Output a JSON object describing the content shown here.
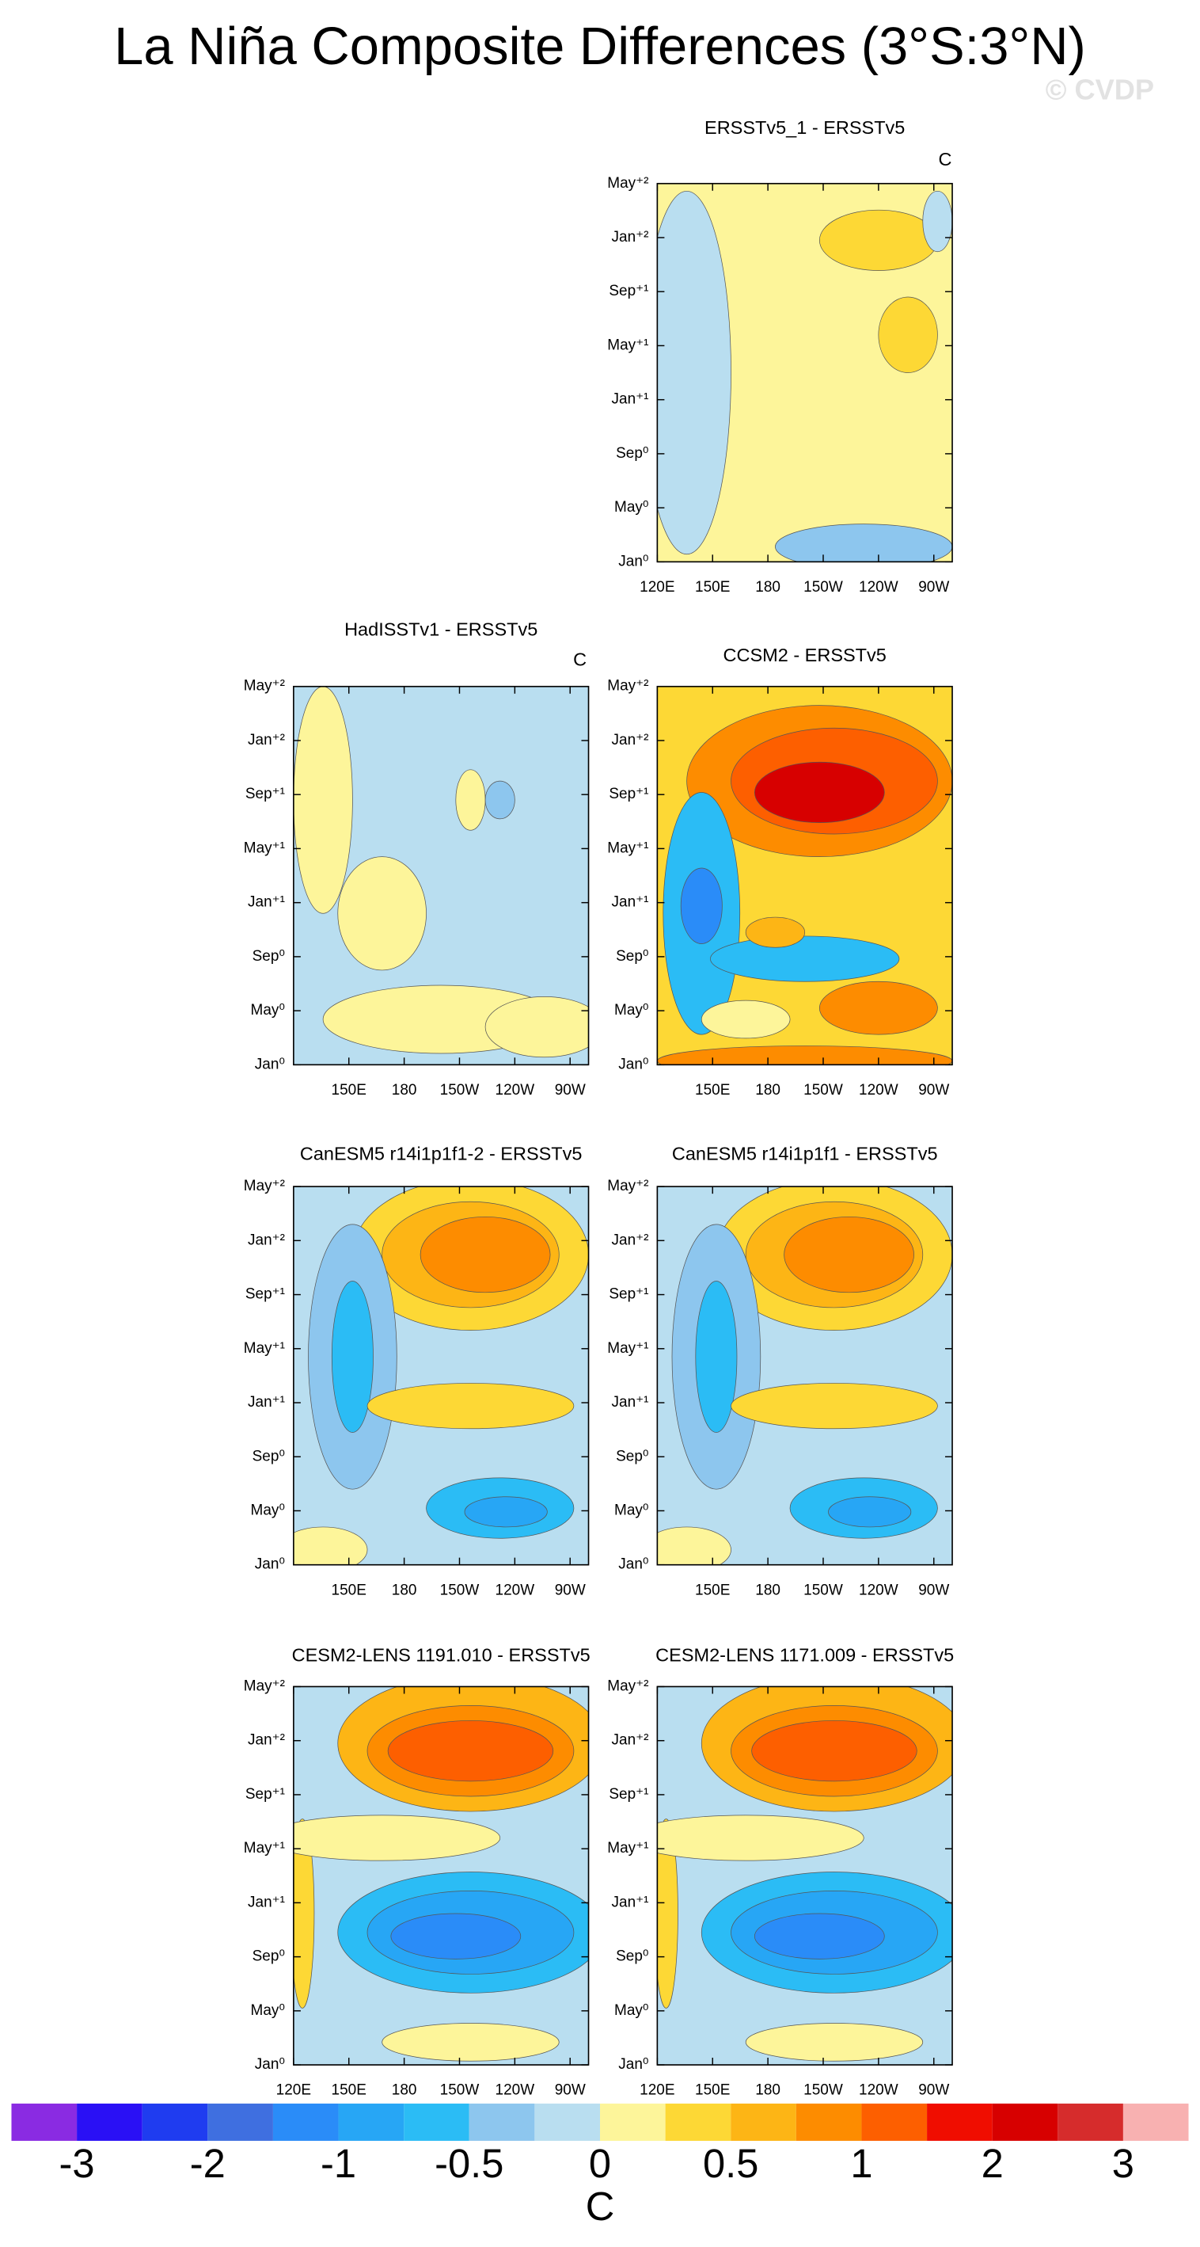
{
  "chart_data": {
    "type": "contour",
    "title": "La Niña Composite Differences (3°S:3°N)",
    "watermark": "© CVDP",
    "xlim": [
      120,
      280
    ],
    "ylim": [
      0,
      28
    ],
    "yticks": [
      {
        "value": 0,
        "label": "Jan⁰"
      },
      {
        "value": 4,
        "label": "May⁰"
      },
      {
        "value": 8,
        "label": "Sep⁰"
      },
      {
        "value": 12,
        "label": "Jan⁺¹"
      },
      {
        "value": 16,
        "label": "May⁺¹"
      },
      {
        "value": 20,
        "label": "Sep⁺¹"
      },
      {
        "value": 24,
        "label": "Jan⁺²"
      },
      {
        "value": 28,
        "label": "May⁺²"
      }
    ],
    "panels": [
      {
        "title": "ERSSTv5_1 - ERSSTv5",
        "units": "C",
        "xticks": [
          {
            "value": 120,
            "label": "120E"
          },
          {
            "value": 150,
            "label": "150E"
          },
          180,
          {
            "value": 210,
            "label": "150W"
          },
          {
            "value": 240,
            "label": "120W"
          },
          {
            "value": 270,
            "label": "90W"
          }
        ]
      },
      {
        "title": "HadISSTv1 - ERSSTv5",
        "units": "C",
        "xticks": [
          {
            "value": 150,
            "label": "150E"
          },
          180,
          {
            "value": 210,
            "label": "150W"
          },
          {
            "value": 240,
            "label": "120W"
          },
          {
            "value": 270,
            "label": "90W"
          }
        ]
      },
      {
        "title": "CCSM2 - ERSSTv5",
        "xticks": [
          {
            "value": 150,
            "label": "150E"
          },
          180,
          {
            "value": 210,
            "label": "150W"
          },
          {
            "value": 240,
            "label": "120W"
          },
          {
            "value": 270,
            "label": "90W"
          }
        ]
      },
      {
        "title": "CanESM5 r14i1p1f1-2 - ERSSTv5",
        "xticks": [
          {
            "value": 150,
            "label": "150E"
          },
          180,
          {
            "value": 210,
            "label": "150W"
          },
          {
            "value": 240,
            "label": "120W"
          },
          {
            "value": 270,
            "label": "90W"
          }
        ]
      },
      {
        "title": "CanESM5 r14i1p1f1 - ERSSTv5",
        "xticks": [
          {
            "value": 150,
            "label": "150E"
          },
          180,
          {
            "value": 210,
            "label": "150W"
          },
          {
            "value": 240,
            "label": "120W"
          },
          {
            "value": 270,
            "label": "90W"
          }
        ]
      },
      {
        "title": "CESM2-LENS 1191.010 - ERSSTv5",
        "xticks": [
          {
            "value": 120,
            "label": "120E"
          },
          {
            "value": 150,
            "label": "150E"
          },
          180,
          {
            "value": 210,
            "label": "150W"
          },
          {
            "value": 240,
            "label": "120W"
          },
          {
            "value": 270,
            "label": "90W"
          }
        ]
      },
      {
        "title": "CESM2-LENS 1171.009 - ERSSTv5",
        "xticks": [
          {
            "value": 120,
            "label": "120E"
          },
          {
            "value": 150,
            "label": "150E"
          },
          180,
          {
            "value": 210,
            "label": "150W"
          },
          {
            "value": 240,
            "label": "120W"
          },
          {
            "value": 270,
            "label": "90W"
          }
        ]
      }
    ],
    "colorbar": {
      "labels": [
        -3,
        -2,
        -1,
        -0.5,
        0,
        0.5,
        1,
        2,
        3
      ],
      "units": "C",
      "colors": [
        "#8a2be2",
        "#2a10f5",
        "#1f3cf0",
        "#3f6fe0",
        "#2a8cf8",
        "#27a6f5",
        "#2bbcf5",
        "#8dc6ee",
        "#b9def0",
        "#fdf59a",
        "#fdd835",
        "#fdb515",
        "#fd8c00",
        "#fd5f00",
        "#f00d00",
        "#d70000",
        "#d62c2c",
        "#f8b1b1"
      ]
    }
  }
}
